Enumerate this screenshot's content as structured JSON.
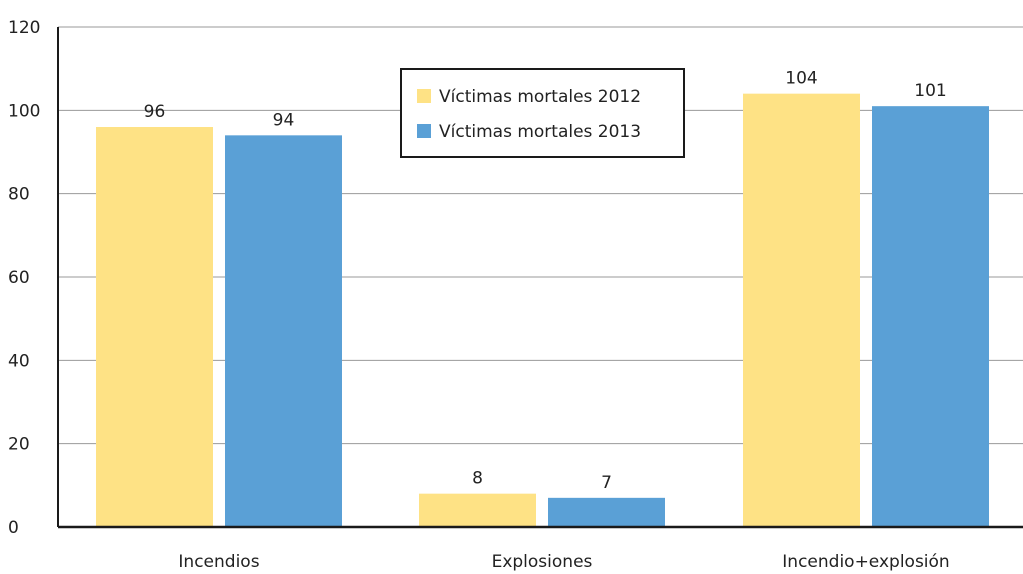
{
  "chart_data": {
    "type": "bar",
    "categories": [
      "Incendios",
      "Explosiones",
      "Incendio+explosión"
    ],
    "series": [
      {
        "name": "Víctimas mortales 2012",
        "values": [
          96,
          8,
          104
        ],
        "color": "#FEE285"
      },
      {
        "name": "Víctimas mortales 2013",
        "values": [
          94,
          7,
          101
        ],
        "color": "#5AA0D6"
      }
    ],
    "ylim": [
      0,
      120
    ],
    "yticks": [
      0,
      20,
      40,
      60,
      80,
      100,
      120
    ],
    "grid": true,
    "legend_position": "top-center",
    "xlabel": "",
    "ylabel": "",
    "title": ""
  }
}
